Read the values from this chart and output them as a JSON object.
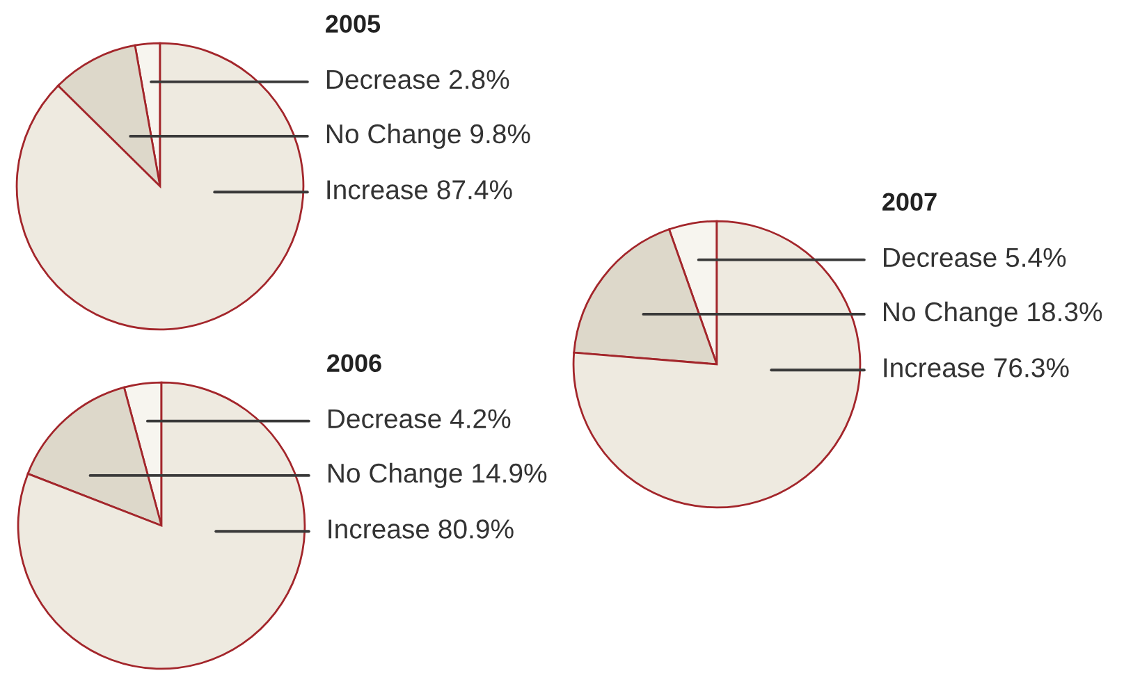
{
  "chart_data": [
    {
      "type": "pie",
      "title": "2005",
      "categories": [
        "Decrease",
        "No Change",
        "Increase"
      ],
      "values": [
        2.8,
        9.8,
        87.4
      ],
      "value_labels": [
        "2.8%",
        "9.8%",
        "87.4%"
      ],
      "colors": [
        "#f7f5ef",
        "#ddd8ca",
        "#eeeae0"
      ]
    },
    {
      "type": "pie",
      "title": "2006",
      "categories": [
        "Decrease",
        "No Change",
        "Increase"
      ],
      "values": [
        4.2,
        14.9,
        80.9
      ],
      "value_labels": [
        "4.2%",
        "14.9%",
        "80.9%"
      ],
      "colors": [
        "#f7f5ef",
        "#ddd8ca",
        "#eeeae0"
      ]
    },
    {
      "type": "pie",
      "title": "2007",
      "categories": [
        "Decrease",
        "No Change",
        "Increase"
      ],
      "values": [
        5.4,
        18.3,
        76.3
      ],
      "value_labels": [
        "5.4%",
        "18.3%",
        "76.3%"
      ],
      "colors": [
        "#f7f5ef",
        "#ddd8ca",
        "#eeeae0"
      ]
    }
  ]
}
